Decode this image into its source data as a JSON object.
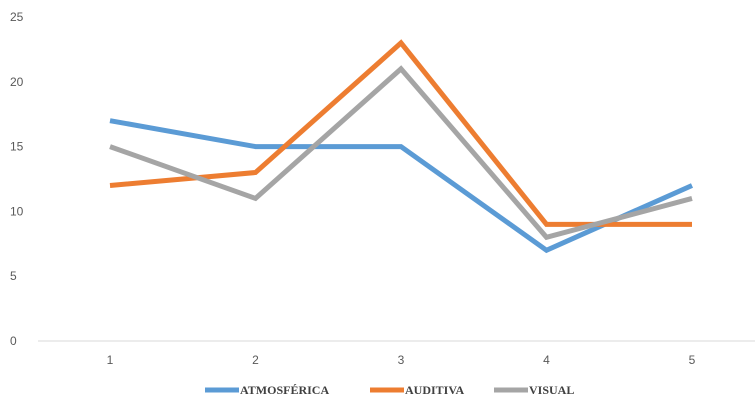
{
  "chart_data": {
    "type": "line",
    "title": "",
    "xlabel": "",
    "ylabel": "",
    "categories": [
      "1",
      "2",
      "3",
      "4",
      "5"
    ],
    "ylim": [
      0,
      25
    ],
    "yticks": [
      "0",
      "5",
      "10",
      "15",
      "20",
      "25"
    ],
    "grid": false,
    "legend_position": "bottom",
    "series": [
      {
        "name": "ATMOSFÉRICA",
        "color": "#5b9bd5",
        "values": [
          17,
          15,
          15,
          7,
          12
        ]
      },
      {
        "name": "AUDITIVA",
        "color": "#ed7d31",
        "values": [
          12,
          13,
          23,
          9,
          9
        ]
      },
      {
        "name": "VISUAL",
        "color": "#a5a5a5",
        "values": [
          15,
          11,
          21,
          8,
          11
        ]
      }
    ]
  }
}
